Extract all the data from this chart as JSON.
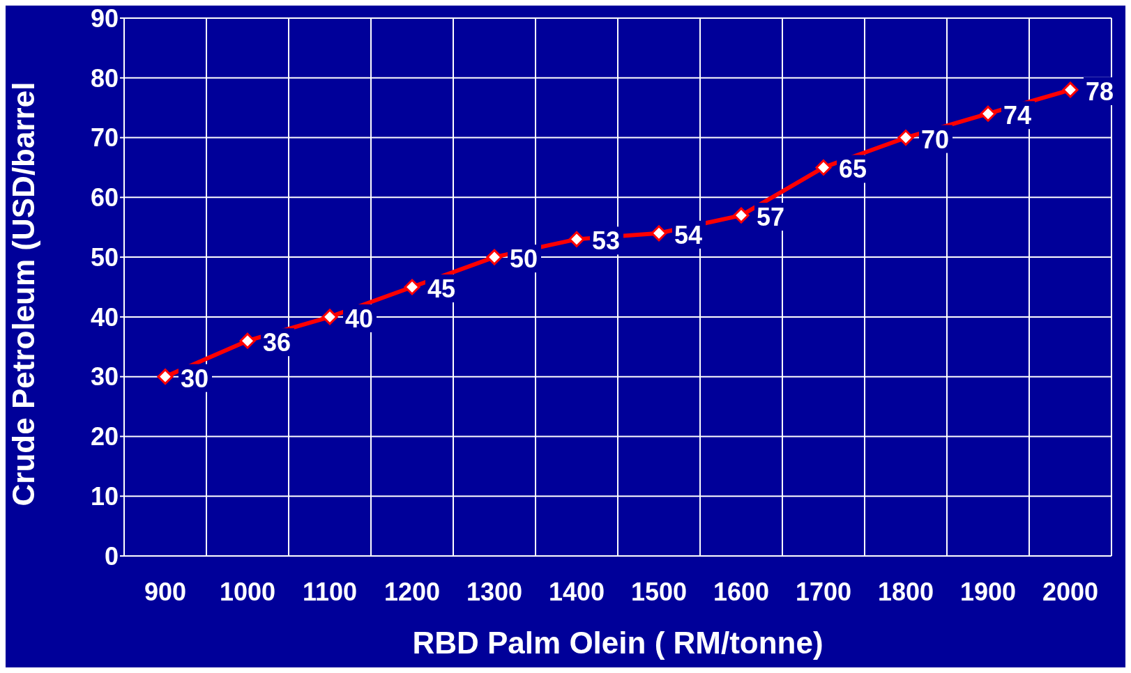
{
  "chart_data": {
    "type": "line",
    "xlabel": "RBD Palm Olein ( RM/tonne)",
    "ylabel": "Crude Petroleum (USD/barrel",
    "categories": [
      "900",
      "1000",
      "1100",
      "1200",
      "1300",
      "1400",
      "1500",
      "1600",
      "1700",
      "1800",
      "1900",
      "2000"
    ],
    "series": [
      {
        "color": "#ff0000",
        "values": [
          30,
          36,
          40,
          45,
          50,
          53,
          54,
          57,
          65,
          70,
          74,
          78
        ]
      }
    ],
    "ylim": [
      0,
      90
    ],
    "yticks": [
      0,
      10,
      20,
      30,
      40,
      50,
      60,
      70,
      80,
      90
    ],
    "grid": true,
    "marker": "diamond",
    "line_style": "solid",
    "data_labels": true,
    "legend": false
  }
}
